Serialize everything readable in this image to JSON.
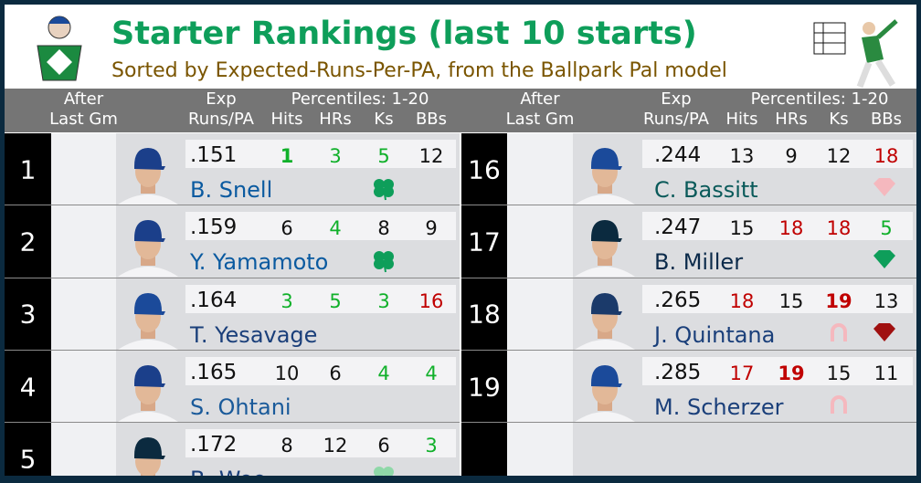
{
  "header": {
    "title": "Starter Rankings (last 10 starts)",
    "subtitle": "Sorted by Expected-Runs-Per-PA, from the Ballpark Pal model"
  },
  "columns": {
    "after": [
      "After",
      "Last Gm"
    ],
    "exp": [
      "Exp",
      "Runs/PA"
    ],
    "percentiles": "Percentiles: 1-20",
    "hits": "Hits",
    "hrs": "HRs",
    "ks": "Ks",
    "bbs": "BBs"
  },
  "rows": [
    {
      "rank": 1,
      "exp": ".151",
      "name": "B. Snell",
      "hits": 1,
      "hrs": 3,
      "ks": 5,
      "bbs": 12
    },
    {
      "rank": 2,
      "exp": ".159",
      "name": "Y. Yamamoto",
      "hits": 6,
      "hrs": 4,
      "ks": 8,
      "bbs": 9
    },
    {
      "rank": 3,
      "exp": ".164",
      "name": "T. Yesavage",
      "hits": 3,
      "hrs": 5,
      "ks": 3,
      "bbs": 16
    },
    {
      "rank": 4,
      "exp": ".165",
      "name": "S. Ohtani",
      "hits": 10,
      "hrs": 6,
      "ks": 4,
      "bbs": 4
    },
    {
      "rank": 5,
      "exp": ".172",
      "name": "B. Woo",
      "hits": 8,
      "hrs": 12,
      "ks": 6,
      "bbs": 3
    },
    {
      "rank": 16,
      "exp": ".244",
      "name": "C. Bassitt",
      "hits": 13,
      "hrs": 9,
      "ks": 12,
      "bbs": 18
    },
    {
      "rank": 17,
      "exp": ".247",
      "name": "B. Miller",
      "hits": 15,
      "hrs": 18,
      "ks": 18,
      "bbs": 5
    },
    {
      "rank": 18,
      "exp": ".265",
      "name": "J. Quintana",
      "hits": 18,
      "hrs": 15,
      "ks": 19,
      "bbs": 13
    },
    {
      "rank": 19,
      "exp": ".285",
      "name": "M. Scherzer",
      "hits": 17,
      "hrs": 19,
      "ks": 15,
      "bbs": 11
    }
  ]
}
